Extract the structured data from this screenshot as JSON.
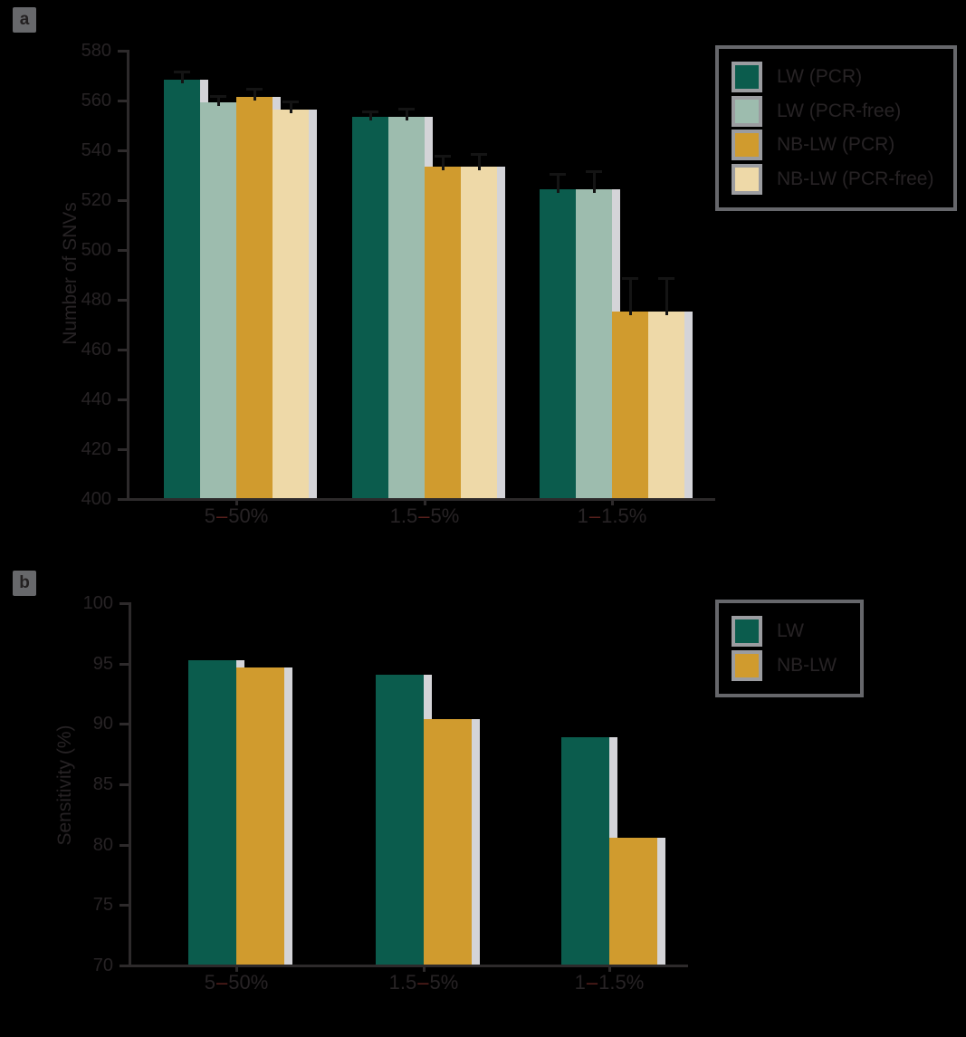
{
  "page": {
    "background": "#000000",
    "panel_a_marker": "a",
    "panel_b_marker": "b"
  },
  "colors": {
    "text": "#272325",
    "axis": "#2d2a2b",
    "error_bar": "#141414",
    "bar_shadow": "#d4d4d8",
    "legend_border": "#66676b",
    "swatch_frame": "#9b9ca0",
    "panel_marker_bg": "#67686b",
    "category_dash": "#57201d",
    "series_dark_green": "#0b5c4d",
    "series_sage_green": "#9dbcae",
    "series_gold": "#d09b2e",
    "series_cream": "#eed9a8"
  },
  "chart_data": [
    {
      "id": "panel_a",
      "type": "bar",
      "title": "",
      "xlabel": "",
      "ylabel": "Number of SNVs",
      "ylim": [
        400,
        580
      ],
      "yticks": [
        580,
        560,
        540,
        520,
        500,
        480,
        460,
        440,
        420,
        400
      ],
      "grid": false,
      "legend_position": "top-right",
      "error_bars": true,
      "categories": [
        {
          "label": "5–50%",
          "lo": "5",
          "dash": "–",
          "hi": "50%"
        },
        {
          "label": "1.5–5%",
          "lo": "1.5",
          "dash": "–",
          "hi": "5%"
        },
        {
          "label": "1–1.5%",
          "lo": "1",
          "dash": "–",
          "hi": "1.5%"
        }
      ],
      "series": [
        {
          "name": "LW (PCR)",
          "color": "#0b5c4d",
          "values": [
            568,
            553,
            524
          ],
          "errors": [
            3,
            2,
            6
          ]
        },
        {
          "name": "LW (PCR-free)",
          "color": "#9dbcae",
          "values": [
            559,
            553,
            524
          ],
          "errors": [
            2,
            3,
            7
          ]
        },
        {
          "name": "NB-LW (PCR)",
          "color": "#d09b2e",
          "values": [
            561,
            533,
            475
          ],
          "errors": [
            3,
            4,
            13
          ]
        },
        {
          "name": "NB-LW (PCR-free)",
          "color": "#eed9a8",
          "values": [
            556,
            533,
            475
          ],
          "errors": [
            3,
            5,
            13
          ]
        }
      ]
    },
    {
      "id": "panel_b",
      "type": "bar",
      "title": "",
      "xlabel": "",
      "ylabel": "Sensitivity (%)",
      "ylim": [
        70,
        100
      ],
      "yticks": [
        100,
        95,
        90,
        85,
        80,
        75,
        70
      ],
      "grid": false,
      "legend_position": "top-right",
      "error_bars": false,
      "categories": [
        {
          "label": "5–50%",
          "lo": "5",
          "dash": "–",
          "hi": "50%"
        },
        {
          "label": "1.5–5%",
          "lo": "1.5",
          "dash": "–",
          "hi": "5%"
        },
        {
          "label": "1–1.5%",
          "lo": "1",
          "dash": "–",
          "hi": "1.5%"
        }
      ],
      "series": [
        {
          "name": "LW",
          "color": "#0b5c4d",
          "values": [
            95.2,
            94.0,
            88.8
          ]
        },
        {
          "name": "NB-LW",
          "color": "#d09b2e",
          "values": [
            94.6,
            90.3,
            80.5
          ]
        }
      ]
    }
  ]
}
